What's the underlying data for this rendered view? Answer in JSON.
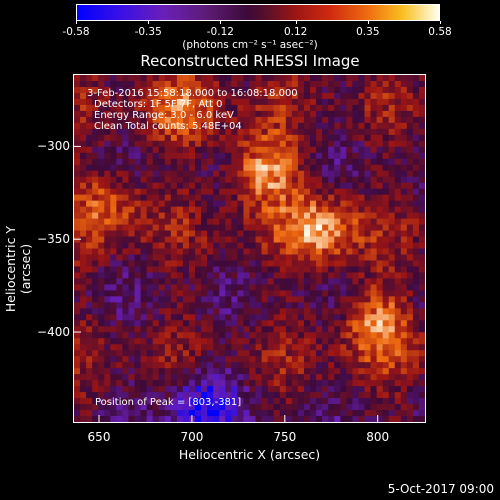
{
  "chart_data": {
    "type": "heatmap",
    "title": "Reconstructed RHESSI Image",
    "xlabel": "Heliocentric X (arcsec)",
    "ylabel": "Heliocentric Y (arcsec)",
    "xlim": [
      636,
      826
    ],
    "ylim": [
      -449,
      -261
    ],
    "x_ticks": [
      650,
      700,
      750,
      800
    ],
    "y_ticks": [
      -300,
      -350,
      -400
    ],
    "colorbar": {
      "min": -0.58,
      "max": 0.58,
      "tick_labels": [
        "-0.58",
        "-0.35",
        "-0.12",
        "0.12",
        "0.35",
        "0.58"
      ],
      "unit_label": "(photons cm⁻² s⁻¹ asec⁻²)",
      "colors": [
        "#0000ff",
        "#6a1fb8",
        "#3d0a3a",
        "#9a1515",
        "#ee6a10",
        "#fffff0"
      ]
    },
    "annotations": [
      "3-Feb-2016 15:58:18.000 to 16:08:18.000",
      "Detectors: 1F 5F 7F, Att 0",
      "Energy Range: 3.0 - 6.0 keV",
      "Clean     Total counts: 5.48E+04"
    ],
    "peak_label": "Position of Peak = [803,-381]",
    "peak": [
      803,
      -381
    ],
    "sources": [
      {
        "x": 738,
        "y": -312,
        "value": 0.5
      },
      {
        "x": 770,
        "y": -345,
        "value": 0.48
      },
      {
        "x": 695,
        "y": -280,
        "value": 0.3
      },
      {
        "x": 655,
        "y": -330,
        "value": 0.32
      },
      {
        "x": 800,
        "y": -395,
        "value": 0.4
      },
      {
        "x": 705,
        "y": -440,
        "value": -0.45
      }
    ]
  },
  "footer_date": "5-Oct-2017 09:00"
}
